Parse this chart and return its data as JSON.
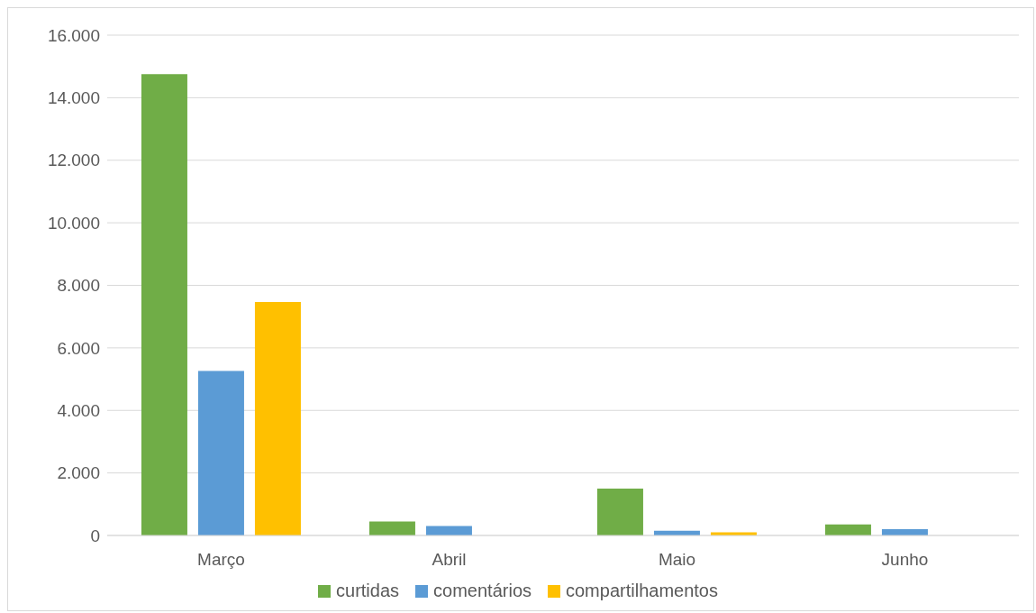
{
  "chart_data": {
    "type": "bar",
    "categories": [
      "Março",
      "Abril",
      "Maio",
      "Junho"
    ],
    "series": [
      {
        "name": "curtidas",
        "color": "#70ad47",
        "values": [
          14750,
          450,
          1500,
          350
        ]
      },
      {
        "name": "comentários",
        "color": "#5b9bd5",
        "values": [
          5260,
          300,
          150,
          200
        ]
      },
      {
        "name": "compartilhamentos",
        "color": "#ffc000",
        "values": [
          7470,
          0,
          100,
          0
        ]
      }
    ],
    "ylim": [
      0,
      16000
    ],
    "yticks": [
      {
        "value": 0,
        "label": "0"
      },
      {
        "value": 2000,
        "label": "2.000"
      },
      {
        "value": 4000,
        "label": "4.000"
      },
      {
        "value": 6000,
        "label": "6.000"
      },
      {
        "value": 8000,
        "label": "8.000"
      },
      {
        "value": 10000,
        "label": "10.000"
      },
      {
        "value": 12000,
        "label": "12.000"
      },
      {
        "value": 14000,
        "label": "14.000"
      },
      {
        "value": 16000,
        "label": "16.000"
      }
    ],
    "grid": "y",
    "legend": "bottom"
  }
}
